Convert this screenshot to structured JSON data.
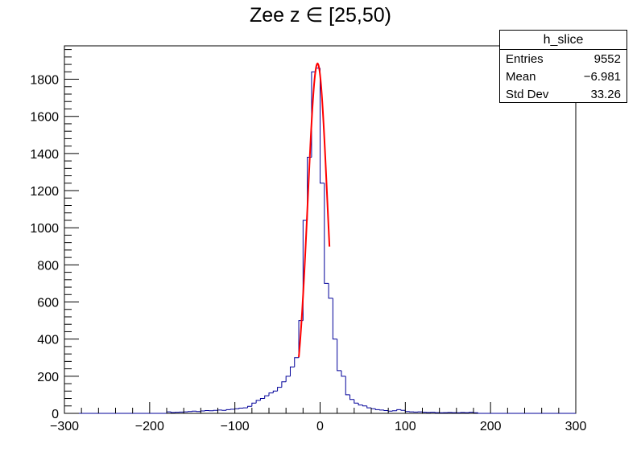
{
  "title": "Zee z ∈ [25,50)",
  "stats": {
    "name": "h_slice",
    "rows": [
      {
        "label": "Entries",
        "value": "9552"
      },
      {
        "label": "Mean",
        "value": "−6.981"
      },
      {
        "label": "Std Dev",
        "value": "33.26"
      }
    ]
  },
  "chart_data": {
    "type": "histogram",
    "title": "Zee z ∈ [25,50)",
    "xlabel": "",
    "ylabel": "",
    "xlim": [
      -300,
      300
    ],
    "ylim": [
      0,
      1980
    ],
    "x_ticks": [
      "−300",
      "−200",
      "−100",
      "0",
      "100",
      "200",
      "300"
    ],
    "y_ticks": [
      "0",
      "200",
      "400",
      "600",
      "800",
      "1000",
      "1200",
      "1400",
      "1600",
      "1800"
    ],
    "grid": false,
    "bin_width": 5,
    "bins": [
      [
        -180,
        8
      ],
      [
        -175,
        5
      ],
      [
        -170,
        6
      ],
      [
        -165,
        7
      ],
      [
        -160,
        8
      ],
      [
        -155,
        10
      ],
      [
        -150,
        12
      ],
      [
        -145,
        10
      ],
      [
        -140,
        13
      ],
      [
        -135,
        15
      ],
      [
        -130,
        14
      ],
      [
        -125,
        16
      ],
      [
        -120,
        18
      ],
      [
        -115,
        16
      ],
      [
        -110,
        20
      ],
      [
        -105,
        22
      ],
      [
        -100,
        25
      ],
      [
        -95,
        28
      ],
      [
        -90,
        30
      ],
      [
        -85,
        38
      ],
      [
        -80,
        55
      ],
      [
        -75,
        70
      ],
      [
        -70,
        80
      ],
      [
        -65,
        95
      ],
      [
        -60,
        110
      ],
      [
        -55,
        120
      ],
      [
        -50,
        140
      ],
      [
        -45,
        170
      ],
      [
        -40,
        200
      ],
      [
        -35,
        250
      ],
      [
        -30,
        300
      ],
      [
        -25,
        500
      ],
      [
        -20,
        1040
      ],
      [
        -15,
        1380
      ],
      [
        -10,
        1840
      ],
      [
        -5,
        1860
      ],
      [
        0,
        1240
      ],
      [
        5,
        700
      ],
      [
        10,
        620
      ],
      [
        15,
        400
      ],
      [
        20,
        230
      ],
      [
        25,
        200
      ],
      [
        30,
        100
      ],
      [
        35,
        75
      ],
      [
        40,
        55
      ],
      [
        45,
        45
      ],
      [
        50,
        40
      ],
      [
        55,
        30
      ],
      [
        60,
        25
      ],
      [
        65,
        20
      ],
      [
        70,
        18
      ],
      [
        75,
        15
      ],
      [
        80,
        12
      ],
      [
        85,
        14
      ],
      [
        90,
        20
      ],
      [
        95,
        16
      ],
      [
        100,
        10
      ],
      [
        105,
        8
      ],
      [
        110,
        7
      ],
      [
        115,
        8
      ],
      [
        120,
        6
      ],
      [
        125,
        5
      ],
      [
        130,
        6
      ],
      [
        135,
        4
      ],
      [
        140,
        3
      ],
      [
        145,
        4
      ],
      [
        150,
        5
      ],
      [
        155,
        4
      ],
      [
        160,
        3
      ],
      [
        165,
        5
      ],
      [
        170,
        4
      ],
      [
        175,
        6
      ],
      [
        180,
        3
      ]
    ],
    "fit": {
      "type": "gaussian",
      "amplitude": 1885,
      "mean": -3,
      "sigma": 11.5,
      "range": [
        -25,
        11
      ],
      "color": "#ff0000"
    },
    "colors": {
      "histogram": "#000099",
      "fit": "#ff0000",
      "frame": "#000000"
    }
  }
}
